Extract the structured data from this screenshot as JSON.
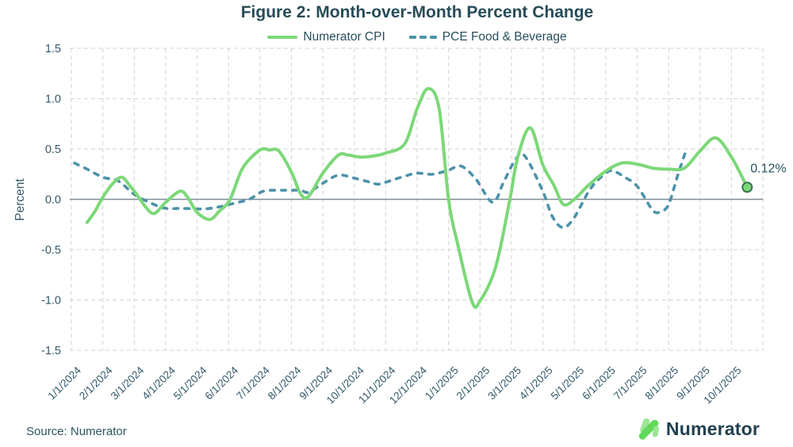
{
  "title": "Figure 2: Month-over-Month Percent Change",
  "legend": {
    "items": [
      {
        "label": "Numerator CPI",
        "style": "solid",
        "color": "#7cd878"
      },
      {
        "label": "PCE Food & Beverage",
        "style": "dashed",
        "color": "#4d92a8"
      }
    ]
  },
  "footer": {
    "source": "Source: Numerator",
    "logo_text": "Numerator"
  },
  "annotation": {
    "label": "0.12%"
  },
  "colors": {
    "title_text": "#274c58",
    "axis_text": "#33596a",
    "grid": "#d9d9d9",
    "zero_line": "#7d8c96",
    "green": "#7cd878",
    "blue": "#4d92a8",
    "dot_fill": "#7cd878",
    "dot_stroke": "#3a7155",
    "annotation_text": "#2b5363",
    "logo_text": "#20404f",
    "logo_green": "#62d95b",
    "logo_light_green": "#9ce695"
  },
  "chart_data": {
    "type": "line",
    "title": "Figure 2: Month-over-Month Percent Change",
    "ylabel": "Percent",
    "ylim": [
      -1.5,
      1.5
    ],
    "y_ticks": [
      1.5,
      1.0,
      0.5,
      0.0,
      -0.5,
      -1.0,
      -1.5
    ],
    "y_tick_labels": [
      "1.5",
      "1.0",
      "0.5",
      "0.0",
      "-0.5",
      "-1.0",
      "-1.5"
    ],
    "x_tick_labels": [
      "1/1/2024",
      "2/1/2024",
      "3/1/2024",
      "4/1/2024",
      "5/1/2024",
      "6/1/2024",
      "7/1/2024",
      "8/1/2024",
      "9/1/2024",
      "10/1/2024",
      "11/1/2024",
      "12/1/2024",
      "1/1/2025",
      "2/1/2025",
      "3/1/2025",
      "4/1/2025",
      "5/1/2025",
      "6/1/2025",
      "7/1/2025",
      "8/1/2025",
      "9/1/2025",
      "10/1/2025"
    ],
    "x_unit": "months since 1/1/2024 (fractional = intra-month position)",
    "grid": true,
    "legend_position": "top",
    "series": [
      {
        "name": "Numerator CPI",
        "style": "solid",
        "color": "#7cd878",
        "points": [
          [
            0.5,
            -0.23
          ],
          [
            0.75,
            -0.12
          ],
          [
            1.0,
            0.02
          ],
          [
            1.3,
            0.15
          ],
          [
            1.6,
            0.22
          ],
          [
            1.85,
            0.14
          ],
          [
            2.1,
            0.04
          ],
          [
            2.4,
            -0.09
          ],
          [
            2.65,
            -0.14
          ],
          [
            3.0,
            -0.03
          ],
          [
            3.45,
            0.08
          ],
          [
            3.7,
            0.02
          ],
          [
            4.0,
            -0.13
          ],
          [
            4.4,
            -0.2
          ],
          [
            4.7,
            -0.12
          ],
          [
            5.05,
            0.0
          ],
          [
            5.45,
            0.31
          ],
          [
            6.0,
            0.49
          ],
          [
            6.3,
            0.49
          ],
          [
            6.6,
            0.48
          ],
          [
            7.0,
            0.27
          ],
          [
            7.3,
            0.05
          ],
          [
            7.55,
            0.03
          ],
          [
            8.0,
            0.26
          ],
          [
            8.5,
            0.44
          ],
          [
            8.8,
            0.44
          ],
          [
            9.2,
            0.42
          ],
          [
            9.6,
            0.43
          ],
          [
            10.0,
            0.46
          ],
          [
            10.6,
            0.55
          ],
          [
            11.0,
            0.9
          ],
          [
            11.35,
            1.1
          ],
          [
            11.7,
            0.9
          ],
          [
            12.0,
            0.0
          ],
          [
            12.3,
            -0.46
          ],
          [
            12.75,
            -1.02
          ],
          [
            13.0,
            -1.01
          ],
          [
            13.5,
            -0.67
          ],
          [
            13.95,
            0.0
          ],
          [
            14.2,
            0.42
          ],
          [
            14.6,
            0.71
          ],
          [
            15.0,
            0.34
          ],
          [
            15.35,
            0.14
          ],
          [
            15.65,
            -0.05
          ],
          [
            16.0,
            0.0
          ],
          [
            16.45,
            0.14
          ],
          [
            17.0,
            0.28
          ],
          [
            17.5,
            0.36
          ],
          [
            18.0,
            0.35
          ],
          [
            18.5,
            0.31
          ],
          [
            19.0,
            0.3
          ],
          [
            19.5,
            0.31
          ],
          [
            20.0,
            0.48
          ],
          [
            20.5,
            0.61
          ],
          [
            21.0,
            0.42
          ],
          [
            21.5,
            0.12
          ]
        ]
      },
      {
        "name": "PCE Food & Beverage",
        "style": "dashed",
        "color": "#4d92a8",
        "points": [
          [
            0.1,
            0.36
          ],
          [
            0.5,
            0.3
          ],
          [
            1.0,
            0.22
          ],
          [
            1.5,
            0.18
          ],
          [
            2.0,
            0.05
          ],
          [
            2.55,
            -0.04
          ],
          [
            3.0,
            -0.09
          ],
          [
            3.5,
            -0.09
          ],
          [
            4.2,
            -0.095
          ],
          [
            4.7,
            -0.075
          ],
          [
            5.1,
            -0.045
          ],
          [
            5.65,
            0.0
          ],
          [
            6.1,
            0.08
          ],
          [
            6.6,
            0.09
          ],
          [
            7.0,
            0.09
          ],
          [
            7.3,
            0.09
          ],
          [
            7.55,
            0.07
          ],
          [
            8.0,
            0.16
          ],
          [
            8.5,
            0.24
          ],
          [
            9.0,
            0.21
          ],
          [
            9.5,
            0.17
          ],
          [
            9.75,
            0.15
          ],
          [
            10.0,
            0.17
          ],
          [
            10.6,
            0.23
          ],
          [
            11.0,
            0.26
          ],
          [
            11.5,
            0.25
          ],
          [
            12.0,
            0.29
          ],
          [
            12.4,
            0.33
          ],
          [
            12.87,
            0.2
          ],
          [
            13.4,
            -0.03
          ],
          [
            13.75,
            0.17
          ],
          [
            14.1,
            0.38
          ],
          [
            14.4,
            0.44
          ],
          [
            14.97,
            0.1
          ],
          [
            15.3,
            -0.17
          ],
          [
            15.64,
            -0.28
          ],
          [
            16.0,
            -0.18
          ],
          [
            16.5,
            0.1
          ],
          [
            17.0,
            0.26
          ],
          [
            17.25,
            0.28
          ],
          [
            17.6,
            0.22
          ],
          [
            18.0,
            0.13
          ],
          [
            18.5,
            -0.11
          ],
          [
            18.75,
            -0.12
          ],
          [
            19.0,
            -0.05
          ],
          [
            19.3,
            0.25
          ],
          [
            19.56,
            0.49
          ]
        ]
      }
    ],
    "end_annotation": {
      "series": "Numerator CPI",
      "label": "0.12%",
      "x": 21.5,
      "y": 0.12
    }
  }
}
